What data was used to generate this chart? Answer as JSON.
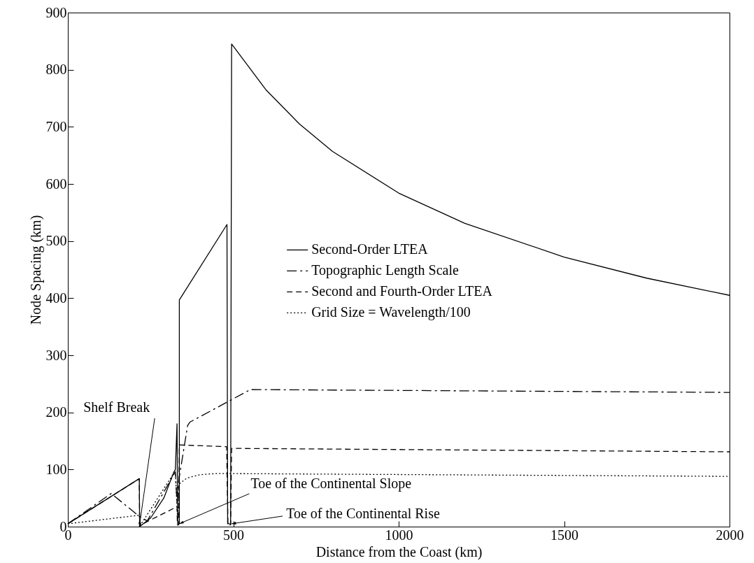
{
  "chart_data": {
    "type": "line",
    "xlabel": "Distance from the Coast (km)",
    "ylabel": "Node Spacing (km)",
    "xlim": [
      0,
      2000
    ],
    "xticks": [
      0,
      500,
      1000,
      1500,
      2000
    ],
    "ylim": [
      0,
      900
    ],
    "yticks": [
      0,
      100,
      200,
      300,
      400,
      500,
      600,
      700,
      800,
      900
    ],
    "grid": false,
    "legend": "right",
    "marker": "none",
    "series": [
      {
        "name": "Second-Order LTEA",
        "color": "#000000",
        "line_style": "solid",
        "x": [
          0,
          216,
          217,
          250,
          290,
          320,
          325,
          330,
          332,
          337,
          337,
          481,
          483,
          492,
          495,
          600,
          700,
          800,
          1000,
          1200,
          1500,
          1750,
          2000
        ],
        "values": [
          5,
          84,
          0,
          15,
          50,
          95,
          100,
          180,
          5,
          5,
          397,
          529,
          5,
          5,
          845,
          764,
          705,
          657,
          584,
          531,
          472,
          435,
          405
        ]
      },
      {
        "name": "Topographic Length Scale",
        "color": "#000000",
        "line_style": "dashdot",
        "x": [
          0,
          131,
          216,
          240,
          325,
          330,
          335,
          362,
          369,
          552,
          2000
        ],
        "values": [
          5,
          58,
          18,
          10,
          96,
          40,
          80,
          177,
          183,
          240,
          235
        ]
      },
      {
        "name": "Second and Fourth-Order LTEA",
        "color": "#000000",
        "line_style": "dashed",
        "x": [
          0,
          216,
          217,
          330,
          331,
          335,
          337,
          480,
          484,
          492,
          495,
          2000
        ],
        "values": [
          5,
          84,
          2,
          35,
          3,
          3,
          143,
          140,
          3,
          3,
          137,
          131
        ]
      },
      {
        "name": "Grid Size = Wavelength/100",
        "color": "#000000",
        "line_style": "dotted",
        "x": [
          0,
          216,
          220,
          316,
          325,
          332,
          337,
          360,
          400,
          450,
          2000
        ],
        "values": [
          5,
          20,
          3,
          90,
          95,
          10,
          75,
          85,
          91,
          93,
          88
        ]
      }
    ],
    "annotations": [
      {
        "text": "Shelf Break",
        "x": 216,
        "y": 0
      },
      {
        "text": "Toe of the Continental Slope",
        "x": 337,
        "y": 5
      },
      {
        "text": "Toe of the Continental Rise",
        "x": 495,
        "y": 5
      }
    ]
  }
}
